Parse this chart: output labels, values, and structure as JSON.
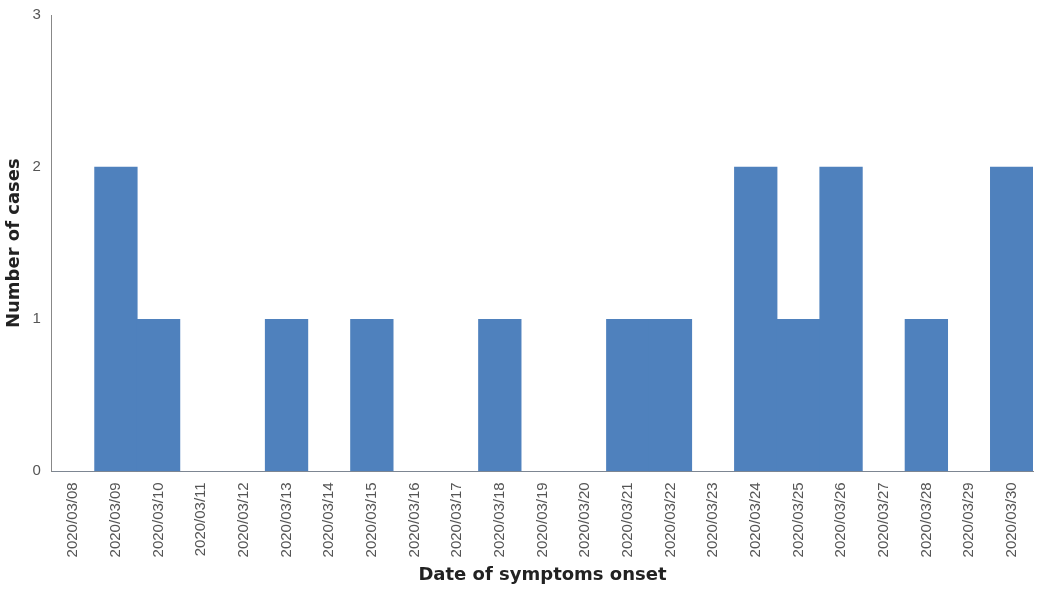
{
  "chart_data": {
    "type": "bar",
    "xlabel": "Date of symptoms onset",
    "ylabel": "Number of cases",
    "categories": [
      "2020/03/08",
      "2020/03/09",
      "2020/03/10",
      "2020/03/11",
      "2020/03/12",
      "2020/03/13",
      "2020/03/14",
      "2020/03/15",
      "2020/03/16",
      "2020/03/17",
      "2020/03/18",
      "2020/03/19",
      "2020/03/20",
      "2020/03/21",
      "2020/03/22",
      "2020/03/23",
      "2020/03/24",
      "2020/03/25",
      "2020/03/26",
      "2020/03/27",
      "2020/03/28",
      "2020/03/29",
      "2020/03/30"
    ],
    "values": [
      0,
      2,
      1,
      0,
      0,
      1,
      0,
      1,
      0,
      0,
      1,
      0,
      0,
      1,
      1,
      0,
      2,
      1,
      2,
      0,
      1,
      0,
      2
    ],
    "color": "#4f81bd",
    "ylim": [
      0,
      3
    ],
    "yticks": [
      0,
      1,
      2,
      3
    ]
  }
}
